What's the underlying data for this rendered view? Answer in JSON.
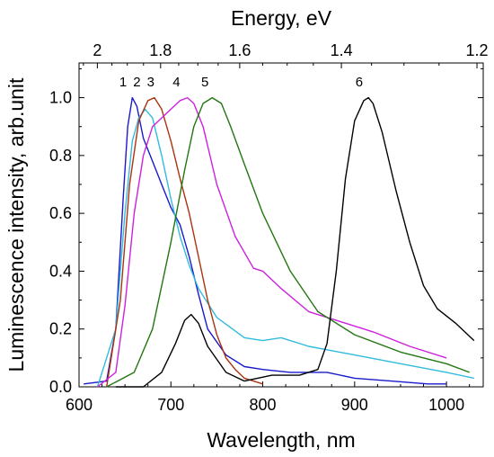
{
  "chart_data": {
    "type": "line",
    "xlabel": "Wavelength, nm",
    "ylabel": "Luminescence intensity, arb.unit",
    "x2label": "Energy, eV",
    "xlim": [
      600,
      1040
    ],
    "ylim": [
      0,
      1.12
    ],
    "xticks": [
      600,
      700,
      800,
      900,
      1000
    ],
    "yticks": [
      0.0,
      0.2,
      0.4,
      0.6,
      0.8,
      1.0
    ],
    "x2ticks": [
      {
        "value": 2,
        "label": "2"
      },
      {
        "value": 1.8,
        "label": "1.8"
      },
      {
        "value": 1.6,
        "label": "1.6"
      },
      {
        "value": 1.4,
        "label": "1.4"
      },
      {
        "value": 1.2,
        "label": "1.2"
      }
    ],
    "grid": false,
    "series": [
      {
        "label": "1",
        "color": "#1a1acc",
        "x": [
          605,
          630,
          640,
          648,
          653,
          658,
          663,
          670,
          680,
          690,
          700,
          710,
          720,
          730,
          740,
          760,
          780,
          800,
          830,
          870,
          900,
          940,
          980,
          1000
        ],
        "y": [
          0.01,
          0.02,
          0.2,
          0.65,
          0.9,
          1.0,
          0.97,
          0.86,
          0.78,
          0.7,
          0.62,
          0.56,
          0.45,
          0.32,
          0.2,
          0.11,
          0.07,
          0.06,
          0.05,
          0.05,
          0.03,
          0.02,
          0.01,
          0.01
        ]
      },
      {
        "label": "2",
        "color": "#33bbdd",
        "x": [
          620,
          640,
          650,
          658,
          665,
          672,
          680,
          690,
          700,
          710,
          720,
          730,
          750,
          780,
          800,
          820,
          850,
          900,
          950,
          1000,
          1030
        ],
        "y": [
          0.0,
          0.2,
          0.6,
          0.85,
          0.93,
          0.96,
          0.93,
          0.8,
          0.65,
          0.52,
          0.42,
          0.34,
          0.24,
          0.17,
          0.16,
          0.17,
          0.14,
          0.11,
          0.08,
          0.05,
          0.03
        ]
      },
      {
        "label": "3",
        "color": "#aa3311",
        "x": [
          630,
          645,
          655,
          665,
          675,
          682,
          690,
          700,
          710,
          720,
          730,
          740,
          750,
          760,
          770,
          780,
          790,
          800
        ],
        "y": [
          0.0,
          0.3,
          0.7,
          0.92,
          0.99,
          1.0,
          0.96,
          0.85,
          0.72,
          0.6,
          0.45,
          0.3,
          0.18,
          0.1,
          0.06,
          0.03,
          0.02,
          0.01
        ]
      },
      {
        "label": "4",
        "color": "#cc22dd",
        "x": [
          620,
          640,
          650,
          660,
          670,
          680,
          690,
          700,
          710,
          718,
          725,
          735,
          750,
          770,
          790,
          800,
          820,
          850,
          880,
          920,
          960,
          1000
        ],
        "y": [
          0.0,
          0.05,
          0.28,
          0.6,
          0.8,
          0.9,
          0.93,
          0.96,
          0.99,
          1.0,
          0.98,
          0.9,
          0.7,
          0.52,
          0.41,
          0.4,
          0.34,
          0.26,
          0.23,
          0.19,
          0.14,
          0.1
        ]
      },
      {
        "label": "5",
        "color": "#227711",
        "x": [
          630,
          660,
          680,
          700,
          715,
          725,
          735,
          745,
          755,
          765,
          780,
          800,
          830,
          860,
          900,
          950,
          1000,
          1025
        ],
        "y": [
          0.0,
          0.05,
          0.2,
          0.5,
          0.75,
          0.9,
          0.98,
          1.0,
          0.98,
          0.9,
          0.77,
          0.6,
          0.4,
          0.26,
          0.18,
          0.12,
          0.08,
          0.05
        ]
      },
      {
        "label": "6",
        "color": "#000000",
        "x": [
          640,
          670,
          690,
          705,
          715,
          722,
          730,
          740,
          760,
          780,
          810,
          840,
          860,
          870,
          880,
          890,
          900,
          910,
          915,
          920,
          930,
          945,
          960,
          975,
          990,
          1010,
          1030
        ],
        "y": [
          0.0,
          0.0,
          0.05,
          0.15,
          0.23,
          0.25,
          0.22,
          0.14,
          0.05,
          0.02,
          0.04,
          0.04,
          0.06,
          0.15,
          0.4,
          0.72,
          0.92,
          0.99,
          1.0,
          0.98,
          0.88,
          0.68,
          0.5,
          0.35,
          0.27,
          0.22,
          0.16
        ]
      }
    ],
    "curve_labels": [
      {
        "text": "1",
        "x": 648
      },
      {
        "text": "2",
        "x": 663
      },
      {
        "text": "3",
        "x": 678
      },
      {
        "text": "4",
        "x": 706
      },
      {
        "text": "5",
        "x": 737
      },
      {
        "text": "6",
        "x": 905
      }
    ]
  }
}
